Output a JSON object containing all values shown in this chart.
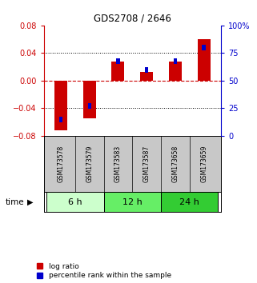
{
  "title": "GDS2708 / 2646",
  "samples": [
    "GSM173578",
    "GSM173579",
    "GSM173583",
    "GSM173587",
    "GSM173658",
    "GSM173659"
  ],
  "log_ratio": [
    -0.072,
    -0.055,
    0.028,
    0.013,
    0.028,
    0.06
  ],
  "percentile_rank": [
    15,
    27,
    68,
    60,
    68,
    80
  ],
  "time_groups": [
    {
      "label": "6 h",
      "start": 0,
      "end": 2,
      "color": "#ccffcc"
    },
    {
      "label": "12 h",
      "start": 2,
      "end": 4,
      "color": "#66ee66"
    },
    {
      "label": "24 h",
      "start": 4,
      "end": 6,
      "color": "#33cc33"
    }
  ],
  "ylim_left": [
    -0.08,
    0.08
  ],
  "ylim_right": [
    0,
    100
  ],
  "yticks_left": [
    -0.08,
    -0.04,
    0,
    0.04,
    0.08
  ],
  "yticks_right": [
    0,
    25,
    50,
    75,
    100
  ],
  "ytick_labels_right": [
    "0",
    "25",
    "50",
    "75",
    "100%"
  ],
  "bar_color_red": "#cc0000",
  "bar_color_blue": "#0000cc",
  "zero_line_color": "#cc0000",
  "background_color": "#ffffff",
  "label_red": "log ratio",
  "label_blue": "percentile rank within the sample",
  "time_label": "time",
  "left_tick_color": "#cc0000",
  "right_tick_color": "#0000cc",
  "sample_bg_color": "#c8c8c8",
  "bar_width": 0.45,
  "blue_bar_width": 0.12
}
